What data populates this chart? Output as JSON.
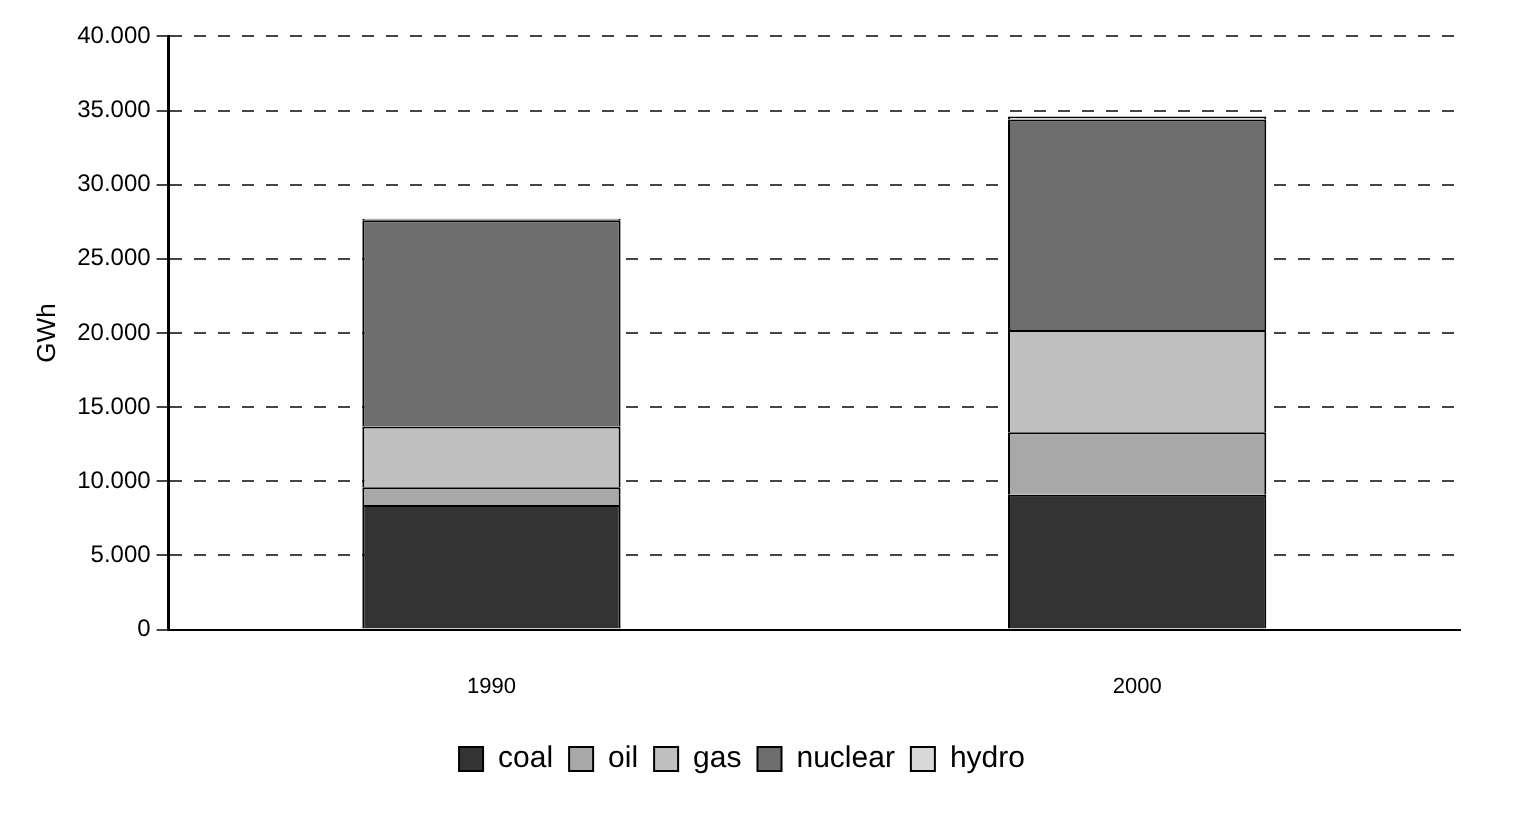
{
  "chart_data": {
    "type": "bar",
    "stacked": true,
    "ylabel": "GWh",
    "categories": [
      "1990",
      "2000"
    ],
    "series": [
      {
        "name": "coal",
        "color": "#333333",
        "values": [
          8400,
          9100
        ]
      },
      {
        "name": "oil",
        "color": "#a8a8a8",
        "values": [
          1200,
          4200
        ]
      },
      {
        "name": "gas",
        "color": "#c0c0c0",
        "values": [
          4100,
          6900
        ]
      },
      {
        "name": "nuclear",
        "color": "#6e6e6e",
        "values": [
          13900,
          14200
        ]
      },
      {
        "name": "hydro",
        "color": "#d8d8d8",
        "values": [
          100,
          200
        ]
      }
    ],
    "ylim": [
      0,
      40000
    ],
    "yticks": [
      {
        "value": 0,
        "label": "0"
      },
      {
        "value": 5000,
        "label": "5.000"
      },
      {
        "value": 10000,
        "label": "10.000"
      },
      {
        "value": 15000,
        "label": "15.000"
      },
      {
        "value": 20000,
        "label": "20.000"
      },
      {
        "value": 25000,
        "label": "25.000"
      },
      {
        "value": 30000,
        "label": "30.000"
      },
      {
        "value": 35000,
        "label": "35.000"
      },
      {
        "value": 40000,
        "label": "40.000"
      }
    ],
    "grid": "y",
    "legend": "bottom"
  }
}
